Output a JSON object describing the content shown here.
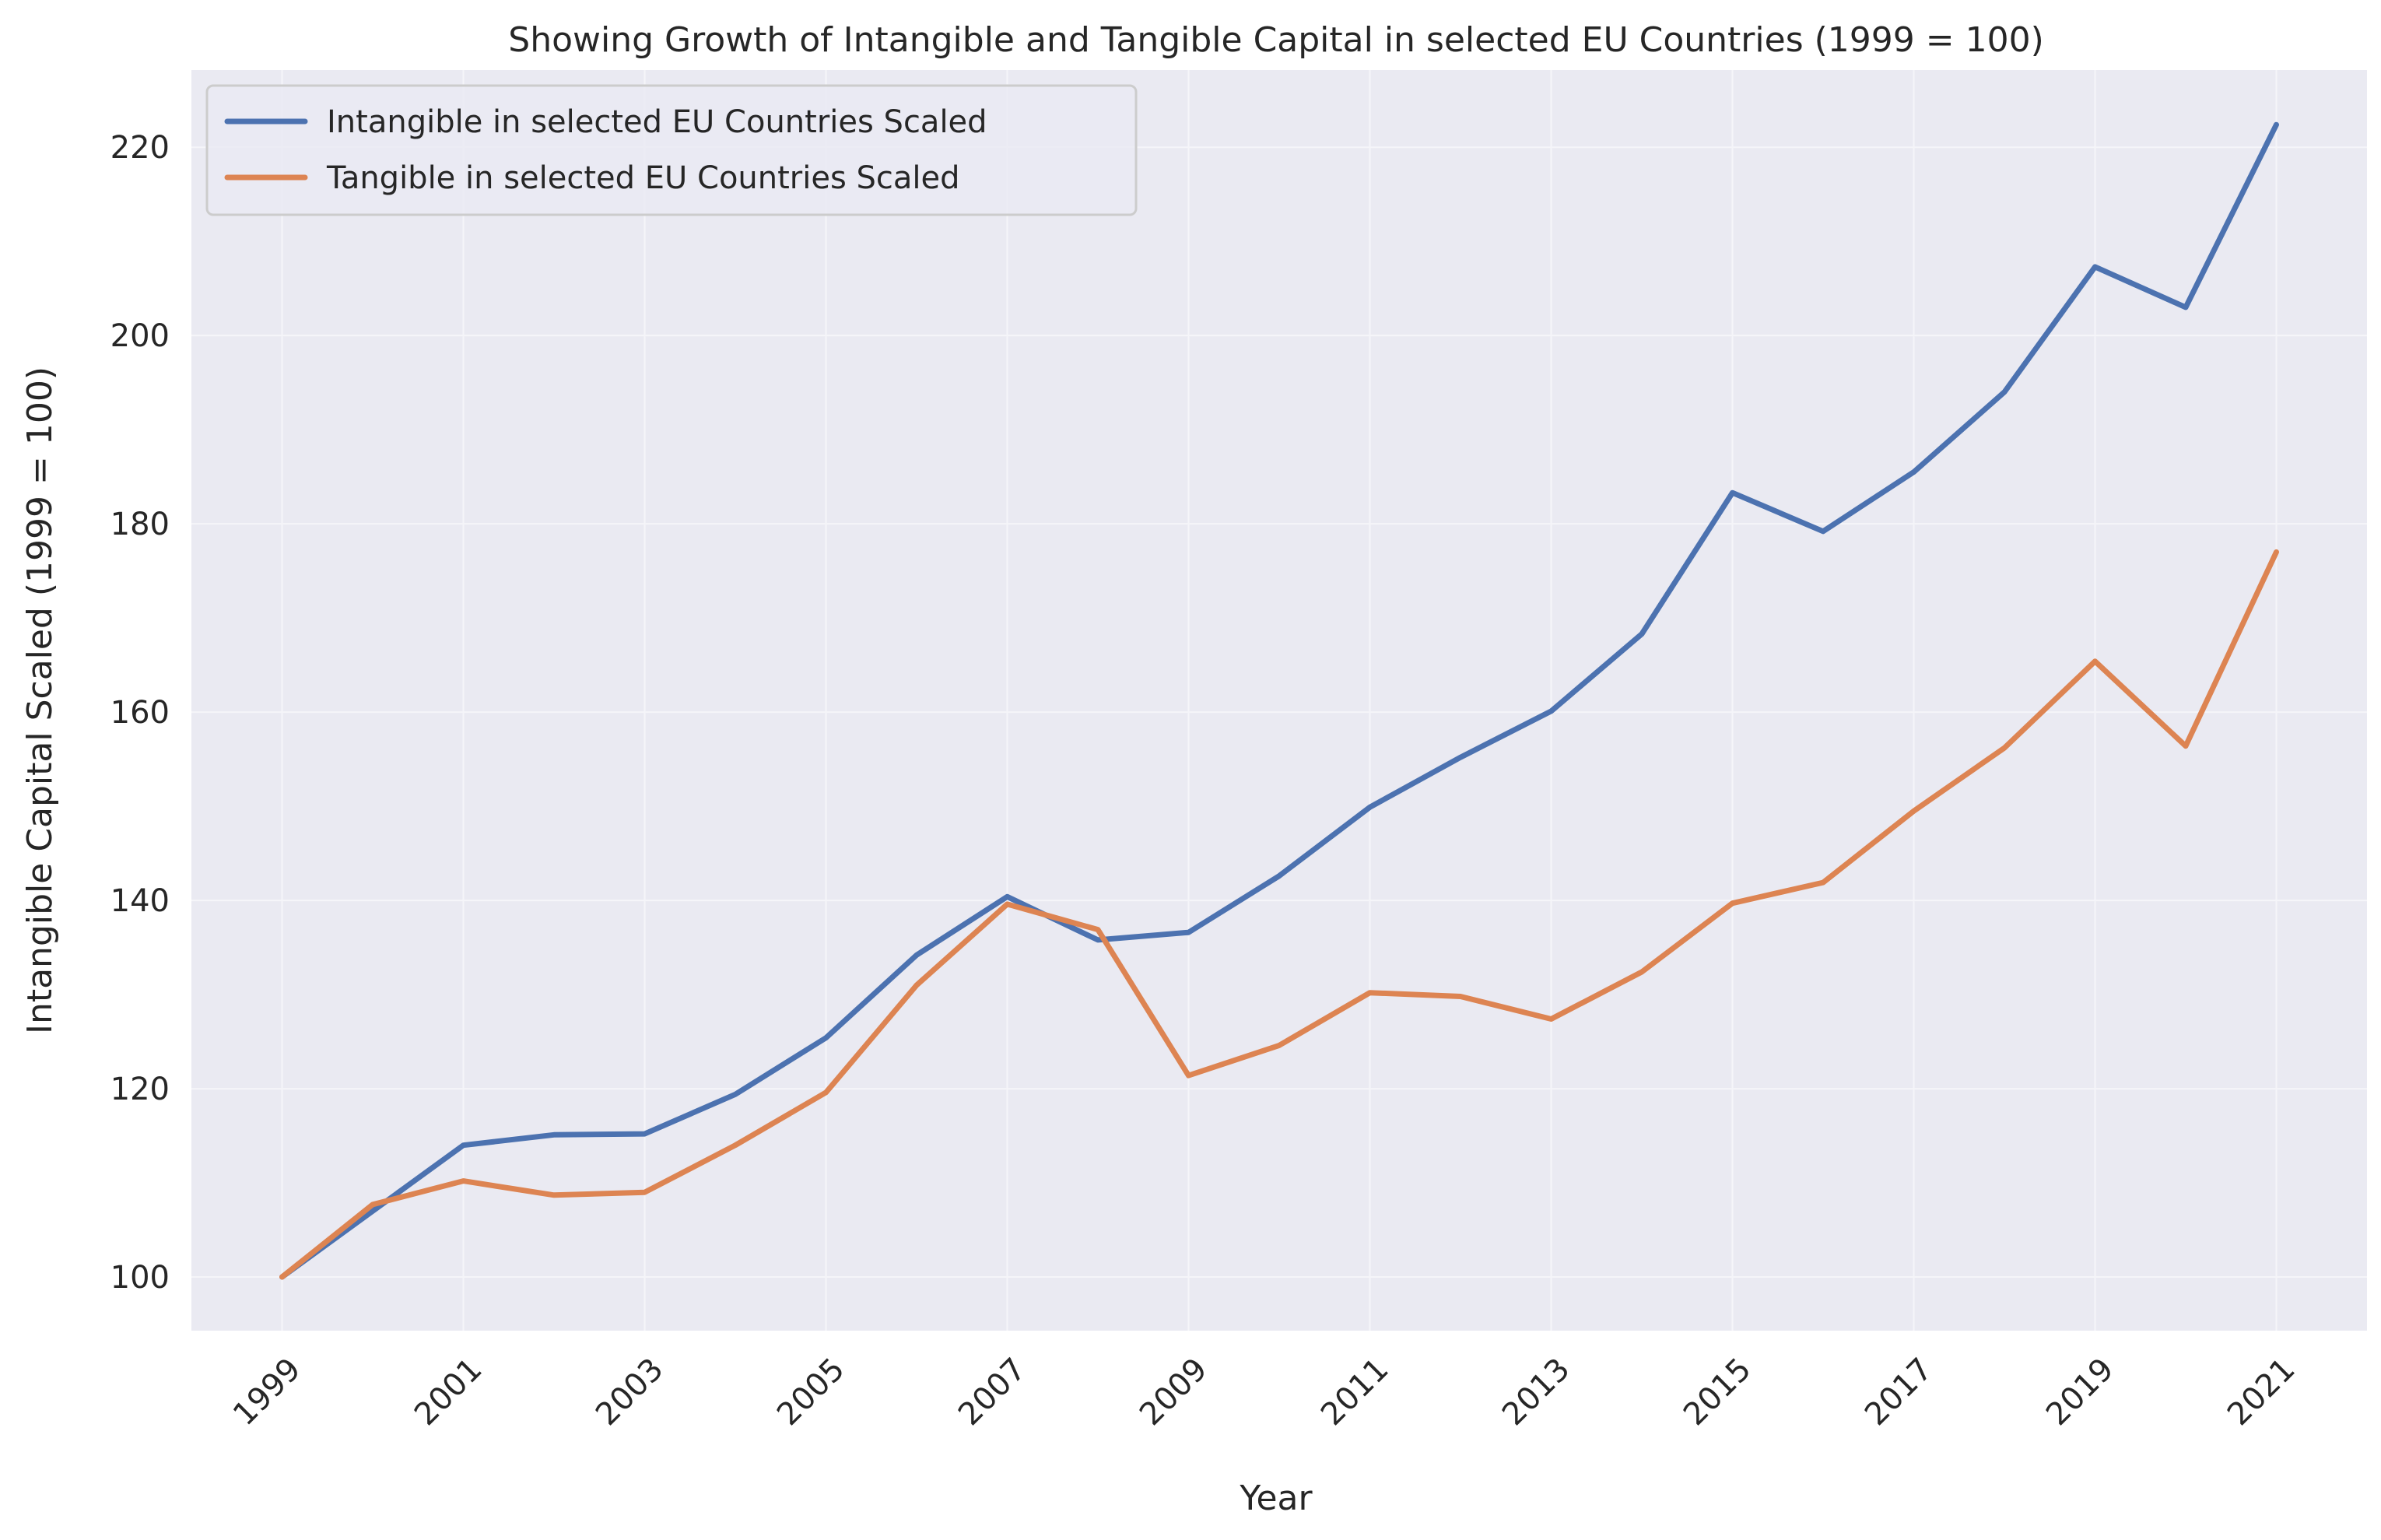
{
  "chart_data": {
    "type": "line",
    "title": "Showing Growth of Intangible and Tangible Capital in selected EU Countries (1999 = 100)",
    "xlabel": "Year",
    "ylabel": "Intangible Capital Scaled (1999 = 100)",
    "x": [
      1999,
      2000,
      2001,
      2002,
      2003,
      2004,
      2005,
      2006,
      2007,
      2008,
      2009,
      2010,
      2011,
      2012,
      2013,
      2014,
      2015,
      2016,
      2017,
      2018,
      2019,
      2020,
      2021
    ],
    "x_ticks": [
      "1999",
      "2001",
      "2003",
      "2005",
      "2007",
      "2009",
      "2011",
      "2013",
      "2015",
      "2017",
      "2019",
      "2021"
    ],
    "y_ticks": [
      "100",
      "120",
      "140",
      "160",
      "180",
      "200",
      "220"
    ],
    "xlim": [
      1998,
      2022
    ],
    "ylim": [
      94.3,
      228.2
    ],
    "grid": true,
    "legend_position": "top-left",
    "series": [
      {
        "name": "Intangible in selected EU Countries Scaled",
        "color": "#4c72b0",
        "values": [
          100.0,
          107.0,
          114.0,
          115.1,
          115.2,
          119.4,
          125.4,
          134.2,
          140.4,
          135.8,
          136.6,
          142.6,
          149.9,
          155.2,
          160.1,
          168.3,
          183.3,
          179.2,
          185.5,
          194.0,
          207.3,
          203.0,
          222.4
        ]
      },
      {
        "name": "Tangible in selected EU Countries Scaled",
        "color": "#dd8452",
        "values": [
          100.0,
          107.7,
          110.2,
          108.7,
          109.0,
          114.0,
          119.6,
          131.0,
          139.6,
          136.9,
          121.4,
          124.6,
          130.2,
          129.8,
          127.4,
          132.4,
          139.7,
          141.9,
          149.5,
          156.2,
          165.4,
          156.4,
          177.0
        ]
      }
    ]
  }
}
